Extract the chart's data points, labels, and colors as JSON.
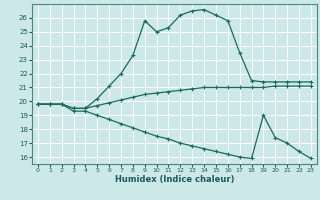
{
  "xlabel": "Humidex (Indice chaleur)",
  "ylabel": "",
  "bg_color": "#cce8e8",
  "line_color": "#1a6b5a",
  "grid_color": "#ffffff",
  "xlim": [
    -0.5,
    23.5
  ],
  "ylim": [
    15.5,
    27.0
  ],
  "xticks": [
    0,
    1,
    2,
    3,
    4,
    5,
    6,
    7,
    8,
    9,
    10,
    11,
    12,
    13,
    14,
    15,
    16,
    17,
    18,
    19,
    20,
    21,
    22,
    23
  ],
  "yticks": [
    16,
    17,
    18,
    19,
    20,
    21,
    22,
    23,
    24,
    25,
    26
  ],
  "curve1_x": [
    0,
    1,
    2,
    3,
    4,
    5,
    6,
    7,
    8,
    9,
    10,
    11,
    12,
    13,
    14,
    15,
    16,
    17,
    18,
    19,
    20,
    21,
    22,
    23
  ],
  "curve1_y": [
    19.8,
    19.8,
    19.8,
    19.5,
    19.5,
    20.2,
    21.1,
    22.0,
    23.3,
    25.8,
    25.0,
    25.3,
    26.2,
    26.5,
    26.6,
    26.2,
    25.8,
    23.5,
    21.5,
    21.4,
    21.4,
    21.4,
    21.4,
    21.4
  ],
  "curve2_x": [
    0,
    1,
    2,
    3,
    4,
    5,
    6,
    7,
    8,
    9,
    10,
    11,
    12,
    13,
    14,
    15,
    16,
    17,
    18,
    19,
    20,
    21,
    22,
    23
  ],
  "curve2_y": [
    19.8,
    19.8,
    19.8,
    19.5,
    19.5,
    19.7,
    19.9,
    20.1,
    20.3,
    20.5,
    20.6,
    20.7,
    20.8,
    20.9,
    21.0,
    21.0,
    21.0,
    21.0,
    21.0,
    21.0,
    21.1,
    21.1,
    21.1,
    21.1
  ],
  "curve3_x": [
    0,
    1,
    2,
    3,
    4,
    5,
    6,
    7,
    8,
    9,
    10,
    11,
    12,
    13,
    14,
    15,
    16,
    17,
    18,
    19,
    20,
    21,
    22,
    23
  ],
  "curve3_y": [
    19.8,
    19.8,
    19.8,
    19.3,
    19.3,
    19.0,
    18.7,
    18.4,
    18.1,
    17.8,
    17.5,
    17.3,
    17.0,
    16.8,
    16.6,
    16.4,
    16.2,
    16.0,
    15.9,
    19.0,
    17.4,
    17.0,
    16.4,
    15.9
  ]
}
